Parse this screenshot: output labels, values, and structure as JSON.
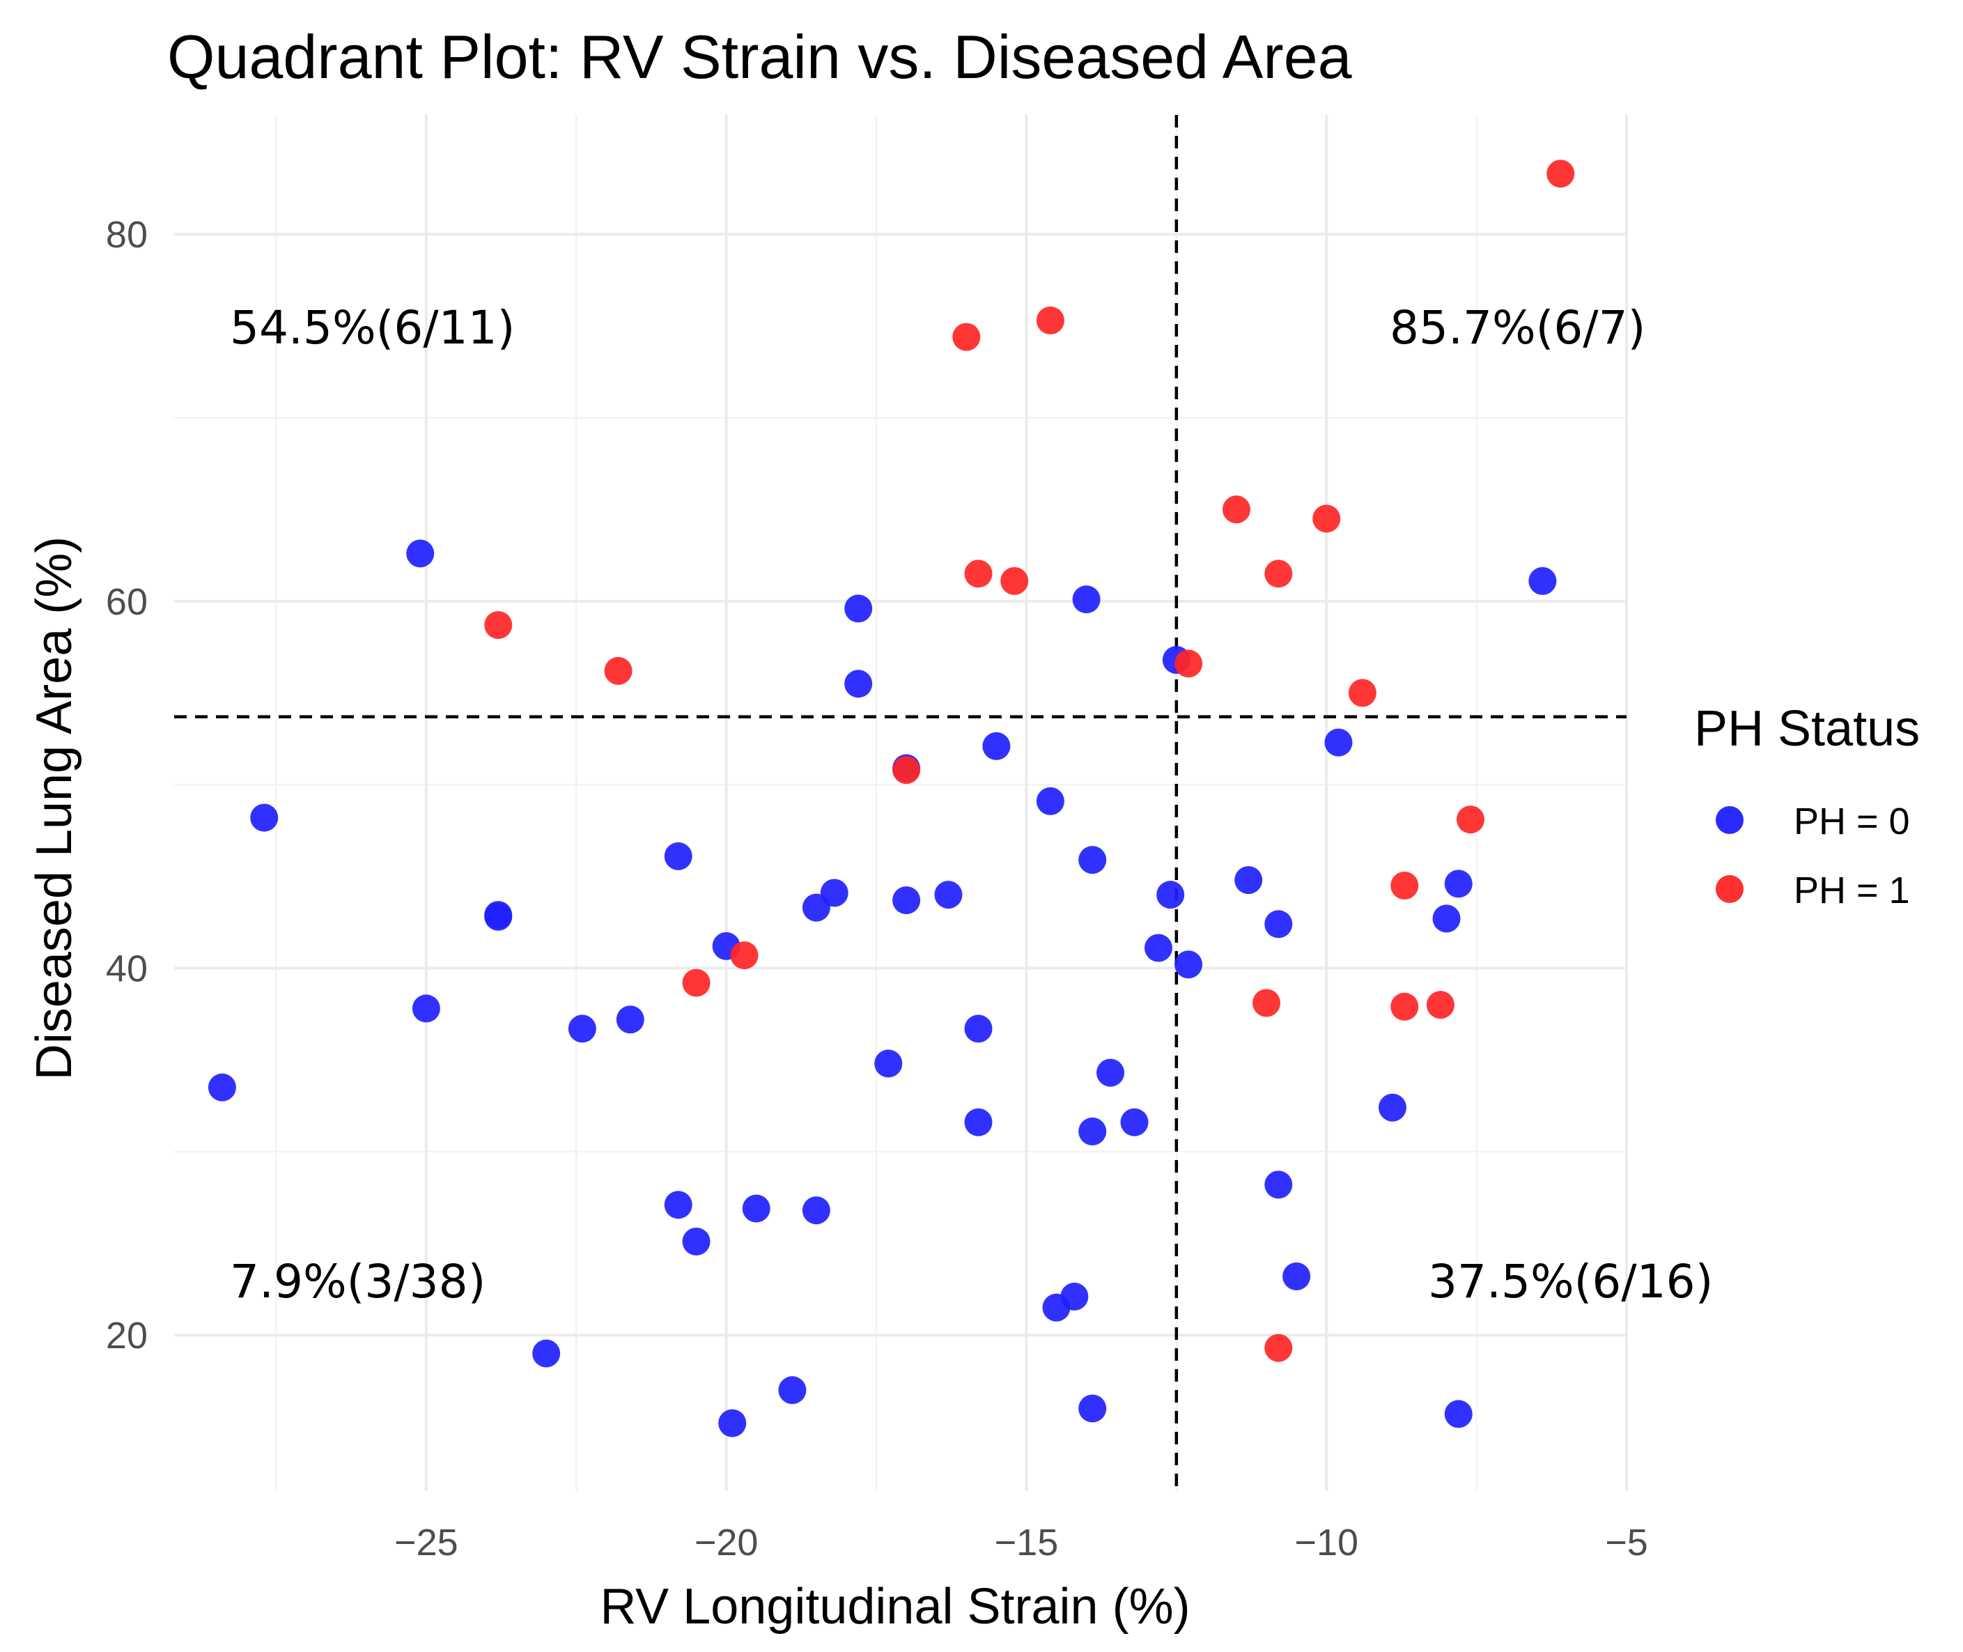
{
  "chart_data": {
    "type": "scatter",
    "title": "Quadrant Plot: RV Strain vs. Diseased Area",
    "xlabel": "RV Longitudinal Strain (%)",
    "ylabel": "Diseased Lung Area (%)",
    "xlim": [
      -29.2,
      -5
    ],
    "ylim": [
      11.5,
      86.5
    ],
    "x_ticks": [
      -25,
      -20,
      -15,
      -10,
      -5
    ],
    "x_tick_labels": [
      "−25",
      "−20",
      "−15",
      "−10",
      "−5"
    ],
    "y_ticks": [
      20,
      40,
      60,
      80
    ],
    "y_tick_labels": [
      "20",
      "40",
      "60",
      "80"
    ],
    "grid": true,
    "thresholds": {
      "x": -12.5,
      "y": 53.7
    },
    "quadrant_labels": {
      "top_left": "54.5%(6/11)",
      "top_right": "85.7%(6/7)",
      "bottom_left": "7.9%(3/38)",
      "bottom_right": "37.5%(6/16)"
    },
    "legend": {
      "title": "PH Status",
      "position": "right",
      "entries": [
        {
          "label": "PH = 0",
          "color": "#1f1fff"
        },
        {
          "label": "PH = 1",
          "color": "#ff2525"
        }
      ]
    },
    "series": [
      {
        "name": "PH = 0",
        "color": "#1f1fff",
        "points": [
          [
            -28.4,
            33.5
          ],
          [
            -27.7,
            48.2
          ],
          [
            -25.1,
            62.6
          ],
          [
            -25.0,
            37.8
          ],
          [
            -23.8,
            42.9
          ],
          [
            -23.8,
            42.8
          ],
          [
            -23.0,
            19.0
          ],
          [
            -22.4,
            36.7
          ],
          [
            -21.6,
            37.2
          ],
          [
            -20.8,
            46.1
          ],
          [
            -20.8,
            27.1
          ],
          [
            -20.5,
            25.1
          ],
          [
            -20.0,
            41.2
          ],
          [
            -19.9,
            15.2
          ],
          [
            -19.5,
            26.9
          ],
          [
            -18.9,
            17.0
          ],
          [
            -18.5,
            43.3
          ],
          [
            -18.5,
            26.8
          ],
          [
            -18.2,
            44.1
          ],
          [
            -17.8,
            59.6
          ],
          [
            -17.8,
            55.5
          ],
          [
            -17.3,
            34.8
          ],
          [
            -17.0,
            43.7
          ],
          [
            -17.0,
            50.9
          ],
          [
            -16.3,
            44.0
          ],
          [
            -15.8,
            36.7
          ],
          [
            -15.8,
            31.6
          ],
          [
            -15.5,
            52.1
          ],
          [
            -14.6,
            49.1
          ],
          [
            -14.5,
            21.5
          ],
          [
            -14.2,
            22.1
          ],
          [
            -14.0,
            60.1
          ],
          [
            -13.9,
            45.9
          ],
          [
            -13.9,
            31.1
          ],
          [
            -13.9,
            16.0
          ],
          [
            -13.6,
            34.3
          ],
          [
            -13.2,
            31.6
          ],
          [
            -12.8,
            41.1
          ],
          [
            -12.6,
            44.0
          ],
          [
            -12.5,
            56.8
          ],
          [
            -12.3,
            40.2
          ],
          [
            -11.3,
            44.8
          ],
          [
            -10.8,
            42.4
          ],
          [
            -10.8,
            28.2
          ],
          [
            -10.5,
            23.2
          ],
          [
            -9.8,
            52.3
          ],
          [
            -8.9,
            32.4
          ],
          [
            -8.0,
            42.7
          ],
          [
            -7.8,
            44.6
          ],
          [
            -7.8,
            15.7
          ],
          [
            -6.4,
            61.1
          ]
        ]
      },
      {
        "name": "PH = 1",
        "color": "#ff2525",
        "points": [
          [
            -23.8,
            58.7
          ],
          [
            -21.8,
            56.2
          ],
          [
            -20.5,
            39.2
          ],
          [
            -19.7,
            40.7
          ],
          [
            -17.0,
            50.8
          ],
          [
            -16.0,
            74.4
          ],
          [
            -15.8,
            61.5
          ],
          [
            -15.2,
            61.1
          ],
          [
            -14.6,
            75.3
          ],
          [
            -12.3,
            56.6
          ],
          [
            -11.5,
            65.0
          ],
          [
            -11.0,
            38.1
          ],
          [
            -10.8,
            61.5
          ],
          [
            -10.8,
            19.3
          ],
          [
            -10.0,
            64.5
          ],
          [
            -9.4,
            55.0
          ],
          [
            -8.7,
            44.5
          ],
          [
            -8.7,
            37.9
          ],
          [
            -8.1,
            38.0
          ],
          [
            -7.6,
            48.1
          ],
          [
            -6.1,
            83.3
          ]
        ]
      }
    ]
  }
}
